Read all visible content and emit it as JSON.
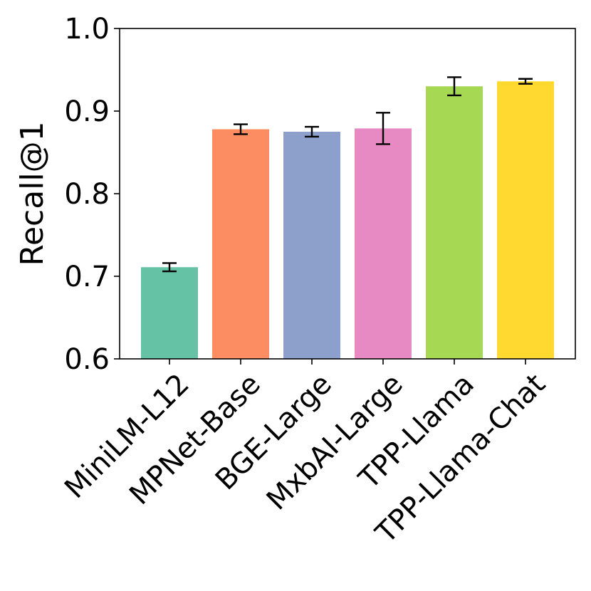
{
  "chart_data": {
    "type": "bar",
    "title": "",
    "xlabel": "",
    "ylabel": "Recall@1",
    "ylim": [
      0.6,
      1.0
    ],
    "yticks": [
      "0.6",
      "0.7",
      "0.8",
      "0.9",
      "1.0"
    ],
    "grid": false,
    "categories": [
      "MiniLM-L12",
      "MPNet-Base",
      "BGE-Large",
      "MxbAI-Large",
      "TPP-Llama",
      "TPP-Llama-Chat"
    ],
    "values": [
      0.711,
      0.878,
      0.875,
      0.879,
      0.93,
      0.936
    ],
    "errors": [
      0.005,
      0.006,
      0.006,
      0.019,
      0.011,
      0.003
    ],
    "colors": [
      "#66c2a5",
      "#fc8d62",
      "#8da0cb",
      "#e78ac3",
      "#a6d854",
      "#ffd92f"
    ]
  }
}
